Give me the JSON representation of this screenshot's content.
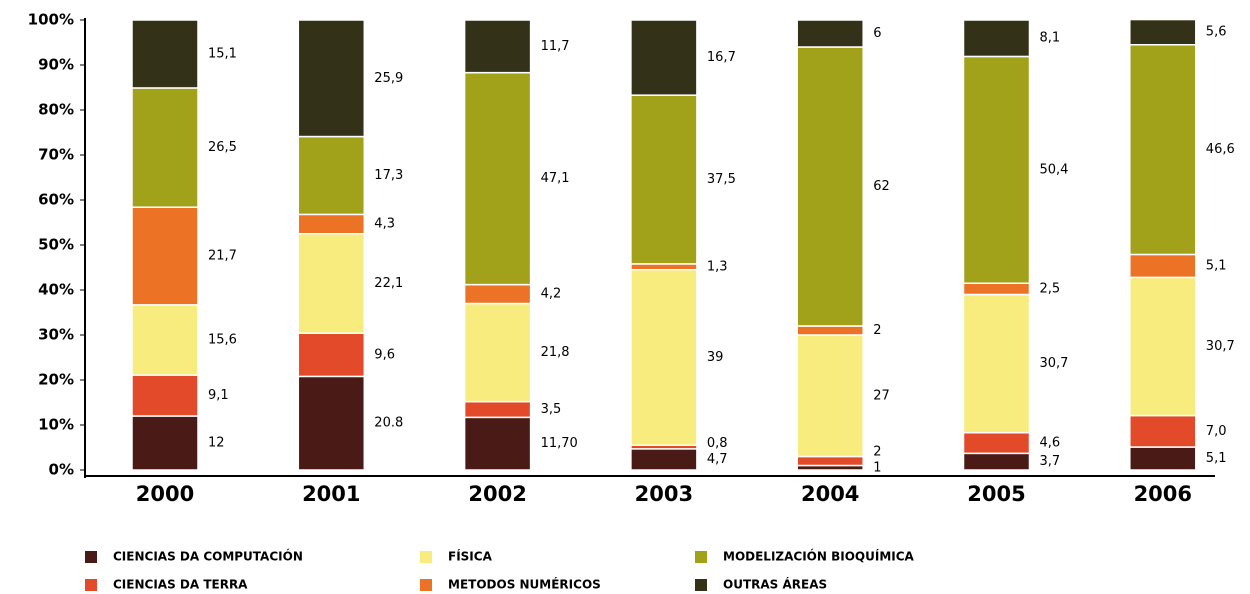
{
  "chart_data": {
    "type": "stacked_bar",
    "categories": [
      "2000",
      "2001",
      "2002",
      "2003",
      "2004",
      "2005",
      "2006"
    ],
    "series": [
      {
        "name": "CIENCIAS DA COMPUTACIÓN",
        "color": "#4a1a16",
        "values": [
          12,
          20.8,
          11.7,
          4.7,
          1,
          3.7,
          5.1
        ],
        "value_labels": [
          "12",
          "20.8",
          "11,70",
          "4,7",
          "1",
          "3,7",
          "5,1"
        ]
      },
      {
        "name": "CIENCIAS DA TERRA",
        "color": "#e34a2a",
        "values": [
          9.1,
          9.6,
          3.5,
          0.8,
          2,
          4.6,
          7.0
        ],
        "value_labels": [
          "9,1",
          "9,6",
          "3,5",
          "0,8",
          "2",
          "4,6",
          "7,0"
        ]
      },
      {
        "name": "FÍSICA",
        "color": "#f9ec7e",
        "values": [
          15.6,
          22.1,
          21.8,
          39,
          27,
          30.7,
          30.7
        ],
        "value_labels": [
          "15,6",
          "22,1",
          "21,8",
          "39",
          "27",
          "30,7",
          "30,7"
        ]
      },
      {
        "name": "METODOS NUMÉRICOS",
        "color": "#ec7226",
        "values": [
          21.7,
          4.3,
          4.2,
          1.3,
          2,
          2.5,
          5.1
        ],
        "value_labels": [
          "21,7",
          "4,3",
          "4,2",
          "1,3",
          "2",
          "2,5",
          "5,1"
        ]
      },
      {
        "name": "MODELIZACIÓN BIOQUÍMICA",
        "color": "#a1a11a",
        "values": [
          26.5,
          17.3,
          47.1,
          37.5,
          62,
          50.4,
          46.6
        ],
        "value_labels": [
          "26,5",
          "17,3",
          "47,1",
          "37,5",
          "62",
          "50,4",
          "46,6"
        ]
      },
      {
        "name": "OUTRAS ÁREAS",
        "color": "#333218",
        "values": [
          15.1,
          25.9,
          11.7,
          16.7,
          6,
          8.1,
          5.6
        ],
        "value_labels": [
          "15,1",
          "25,9",
          "11,7",
          "16,7",
          "6",
          "8,1",
          "5,6"
        ]
      }
    ],
    "ylim": [
      0,
      100
    ],
    "yticks": [
      {
        "value": 0,
        "label": "0%"
      },
      {
        "value": 10,
        "label": "10%"
      },
      {
        "value": 20,
        "label": "20%"
      },
      {
        "value": 30,
        "label": "30%"
      },
      {
        "value": 40,
        "label": "40%"
      },
      {
        "value": 50,
        "label": "50%"
      },
      {
        "value": 60,
        "label": "60%"
      },
      {
        "value": 70,
        "label": "70%"
      },
      {
        "value": 80,
        "label": "80%"
      },
      {
        "value": 90,
        "label": "90%"
      },
      {
        "value": 100,
        "label": "100%"
      }
    ]
  }
}
